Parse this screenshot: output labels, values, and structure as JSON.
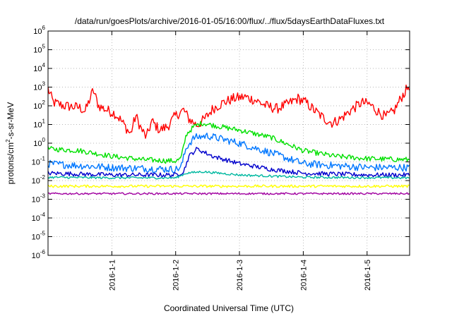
{
  "chart_data": {
    "type": "line",
    "title": "/data/run/goesPlots/archive/2016-01-05/16:00/flux/../flux/5daysEarthDataFluxes.txt",
    "xlabel": "Coordinated Universal Time (UTC)",
    "ylabel_prefix": "protons/cm",
    "ylabel_sup": "2",
    "ylabel_suffix": "-s-sr-MeV",
    "y_scale": "log",
    "ylim": [
      1e-06,
      1000000.0
    ],
    "y_ticks": [
      {
        "value": 1e-06,
        "base": "10",
        "exp": "-6"
      },
      {
        "value": 1e-05,
        "base": "10",
        "exp": "-5"
      },
      {
        "value": 0.0001,
        "base": "10",
        "exp": "-4"
      },
      {
        "value": 0.001,
        "base": "10",
        "exp": "-3"
      },
      {
        "value": 0.01,
        "base": "10",
        "exp": "-2"
      },
      {
        "value": 0.1,
        "base": "10",
        "exp": "-1"
      },
      {
        "value": 1.0,
        "base": "10",
        "exp": "0"
      },
      {
        "value": 10.0,
        "base": "10",
        "exp": "1"
      },
      {
        "value": 100.0,
        "base": "10",
        "exp": "2"
      },
      {
        "value": 1000.0,
        "base": "10",
        "exp": "3"
      },
      {
        "value": 10000.0,
        "base": "10",
        "exp": "4"
      },
      {
        "value": 100000.0,
        "base": "10",
        "exp": "5"
      },
      {
        "value": 1000000.0,
        "base": "10",
        "exp": "6"
      }
    ],
    "xlim": [
      "2015-12-31T00:00",
      "2016-01-05T16:00"
    ],
    "x_ticks": [
      "2016-1-1",
      "2016-1-2",
      "2016-1-3",
      "2016-1-4",
      "2016-1-5"
    ],
    "x_tick_dates": [
      "2016-01-01T00:00",
      "2016-01-02T00:00",
      "2016-01-03T00:00",
      "2016-01-04T00:00",
      "2016-01-05T00:00"
    ],
    "grid": true,
    "series": [
      {
        "color": "#ff0000",
        "noise": 0.28,
        "points": [
          [
            "2015-12-31T00:00",
            800
          ],
          [
            "2015-12-31T02:00",
            150
          ],
          [
            "2015-12-31T06:00",
            100
          ],
          [
            "2015-12-31T09:00",
            90
          ],
          [
            "2015-12-31T12:00",
            80
          ],
          [
            "2015-12-31T14:00",
            50
          ],
          [
            "2015-12-31T17:00",
            700
          ],
          [
            "2015-12-31T19:00",
            100
          ],
          [
            "2015-12-31T22:00",
            60
          ],
          [
            "2016-01-01T01:00",
            40
          ],
          [
            "2016-01-01T03:00",
            20
          ],
          [
            "2016-01-01T05:00",
            8
          ],
          [
            "2016-01-01T07:00",
            3
          ],
          [
            "2016-01-01T09:00",
            30
          ],
          [
            "2016-01-01T11:00",
            6
          ],
          [
            "2016-01-01T13:00",
            2
          ],
          [
            "2016-01-01T15:00",
            15
          ],
          [
            "2016-01-01T18:00",
            5
          ],
          [
            "2016-01-01T21:00",
            8
          ],
          [
            "2016-01-02T00:00",
            30
          ],
          [
            "2016-01-02T03:00",
            60
          ],
          [
            "2016-01-02T05:00",
            20
          ],
          [
            "2016-01-02T08:00",
            9
          ],
          [
            "2016-01-02T11:00",
            20
          ],
          [
            "2016-01-02T14:00",
            70
          ],
          [
            "2016-01-02T18:00",
            150
          ],
          [
            "2016-01-02T22:00",
            250
          ],
          [
            "2016-01-03T02:00",
            300
          ],
          [
            "2016-01-03T06:00",
            200
          ],
          [
            "2016-01-03T10:00",
            100
          ],
          [
            "2016-01-03T14:00",
            70
          ],
          [
            "2016-01-03T18:00",
            120
          ],
          [
            "2016-01-03T22:00",
            250
          ],
          [
            "2016-01-04T01:00",
            150
          ],
          [
            "2016-01-04T04:00",
            60
          ],
          [
            "2016-01-04T08:00",
            20
          ],
          [
            "2016-01-04T11:00",
            12
          ],
          [
            "2016-01-04T14:00",
            20
          ],
          [
            "2016-01-04T18:00",
            60
          ],
          [
            "2016-01-04T22:00",
            150
          ],
          [
            "2016-01-05T01:00",
            120
          ],
          [
            "2016-01-05T04:00",
            50
          ],
          [
            "2016-01-05T07:00",
            25
          ],
          [
            "2016-01-05T10:00",
            50
          ],
          [
            "2016-01-05T13:00",
            300
          ],
          [
            "2016-01-05T16:00",
            1300
          ]
        ]
      },
      {
        "color": "#00e000",
        "noise": 0.14,
        "points": [
          [
            "2015-12-31T00:00",
            0.5
          ],
          [
            "2015-12-31T12:00",
            0.4
          ],
          [
            "2016-01-01T00:00",
            0.2
          ],
          [
            "2016-01-01T12:00",
            0.13
          ],
          [
            "2016-01-02T00:00",
            0.11
          ],
          [
            "2016-01-02T02:00",
            0.15
          ],
          [
            "2016-01-02T04:00",
            3
          ],
          [
            "2016-01-02T07:00",
            8
          ],
          [
            "2016-01-02T10:00",
            12
          ],
          [
            "2016-01-02T16:00",
            8
          ],
          [
            "2016-01-03T00:00",
            5
          ],
          [
            "2016-01-03T12:00",
            2
          ],
          [
            "2016-01-04T00:00",
            0.4
          ],
          [
            "2016-01-04T12:00",
            0.2
          ],
          [
            "2016-01-05T00:00",
            0.15
          ],
          [
            "2016-01-05T16:00",
            0.13
          ]
        ]
      },
      {
        "color": "#0077ff",
        "noise": 0.2,
        "points": [
          [
            "2015-12-31T00:00",
            0.08
          ],
          [
            "2016-01-01T00:00",
            0.05
          ],
          [
            "2016-01-02T00:00",
            0.04
          ],
          [
            "2016-01-02T02:00",
            0.05
          ],
          [
            "2016-01-02T04:00",
            0.6
          ],
          [
            "2016-01-02T07:00",
            2
          ],
          [
            "2016-01-02T12:00",
            2.5
          ],
          [
            "2016-01-03T00:00",
            1
          ],
          [
            "2016-01-03T12:00",
            0.3
          ],
          [
            "2016-01-04T00:00",
            0.08
          ],
          [
            "2016-01-05T00:00",
            0.05
          ],
          [
            "2016-01-05T16:00",
            0.05
          ]
        ]
      },
      {
        "color": "#0000cc",
        "noise": 0.12,
        "points": [
          [
            "2015-12-31T00:00",
            0.025
          ],
          [
            "2016-01-01T00:00",
            0.02
          ],
          [
            "2016-01-02T00:00",
            0.02
          ],
          [
            "2016-01-02T03:00",
            0.03
          ],
          [
            "2016-01-02T05:00",
            0.2
          ],
          [
            "2016-01-02T08:00",
            0.5
          ],
          [
            "2016-01-02T14:00",
            0.2
          ],
          [
            "2016-01-03T00:00",
            0.08
          ],
          [
            "2016-01-03T12:00",
            0.04
          ],
          [
            "2016-01-04T00:00",
            0.025
          ],
          [
            "2016-01-05T00:00",
            0.02
          ],
          [
            "2016-01-05T16:00",
            0.02
          ]
        ]
      },
      {
        "color": "#00b8a0",
        "noise": 0.06,
        "points": [
          [
            "2015-12-31T00:00",
            0.015
          ],
          [
            "2016-01-01T00:00",
            0.014
          ],
          [
            "2016-01-02T00:00",
            0.014
          ],
          [
            "2016-01-02T04:00",
            0.025
          ],
          [
            "2016-01-02T10:00",
            0.03
          ],
          [
            "2016-01-03T00:00",
            0.02
          ],
          [
            "2016-01-04T00:00",
            0.015
          ],
          [
            "2016-01-05T16:00",
            0.014
          ]
        ]
      },
      {
        "color": "#ffff00",
        "noise": 0.07,
        "points": [
          [
            "2015-12-31T00:00",
            0.005
          ],
          [
            "2016-01-05T16:00",
            0.005
          ]
        ]
      },
      {
        "color": "#a000a0",
        "noise": 0.05,
        "points": [
          [
            "2015-12-31T00:00",
            0.002
          ],
          [
            "2016-01-05T16:00",
            0.002
          ]
        ]
      }
    ]
  }
}
